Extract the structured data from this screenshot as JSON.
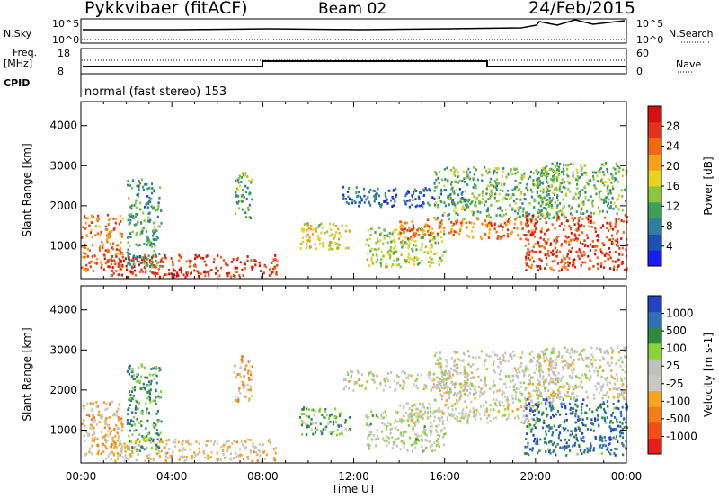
{
  "header": {
    "station": "Pykkvibaer (fitACF)",
    "beam": "Beam 02",
    "date": "24/Feb/2015"
  },
  "strip_panels": {
    "nsky_label": "N.Sky",
    "nsky_ticks": [
      "10^5",
      "10^0"
    ],
    "nsearch_label": "N.Search",
    "nsearch_ticks": [
      "10^5",
      "10^0"
    ],
    "freq_label_top": "Freq.",
    "freq_label_bottom": "[MHz]",
    "freq_ticks": [
      "18",
      "8"
    ],
    "nave_label": "Nave",
    "nave_ticks": [
      "60",
      "0"
    ],
    "cpid_label": "CPID",
    "cpid_value": "normal (fast stereo) 153"
  },
  "colors": {
    "power": [
      "#1a1aff",
      "#1e4fb5",
      "#2e7fa0",
      "#3e9e5a",
      "#8cc63e",
      "#e8d21e",
      "#f5a11a",
      "#ef6a12",
      "#e63217",
      "#d6110f"
    ],
    "velocity": [
      "#ec1c1c",
      "#f24e1a",
      "#f57d17",
      "#f7a61b",
      "#c8c8c4",
      "#c0c0bc",
      "#8ad43b",
      "#2d8a3e",
      "#2f6fb8",
      "#2244c4"
    ]
  },
  "chart_data": [
    {
      "type": "heatmap",
      "name": "power-panel",
      "xlabel": "",
      "ylabel": "Slant Range [km]",
      "xlim": [
        "00:00",
        "24:00"
      ],
      "ylim": [
        180,
        4600
      ],
      "yticks": [
        "1000",
        "2000",
        "3000",
        "4000"
      ],
      "colorbar": {
        "label": "Power [dB]",
        "ticks": [
          "4",
          "8",
          "12",
          "16",
          "20",
          "24",
          "28"
        ],
        "range": [
          0,
          30
        ]
      },
      "regions": [
        {
          "t0": 0.0,
          "t1": 1.8,
          "r0": 400,
          "r1": 1800,
          "value": 22
        },
        {
          "t0": 1.0,
          "t1": 8.6,
          "r0": 250,
          "r1": 800,
          "value": 26
        },
        {
          "t0": 2.0,
          "t1": 3.5,
          "r0": 500,
          "r1": 2700,
          "value": 10
        },
        {
          "t0": 6.7,
          "t1": 7.5,
          "r0": 1700,
          "r1": 2900,
          "value": 12
        },
        {
          "t0": 9.6,
          "t1": 11.8,
          "r0": 900,
          "r1": 1600,
          "value": 16
        },
        {
          "t0": 11.5,
          "t1": 17.0,
          "r0": 2000,
          "r1": 2500,
          "value": 6
        },
        {
          "t0": 12.5,
          "t1": 16.0,
          "r0": 500,
          "r1": 1500,
          "value": 14
        },
        {
          "t0": 14.0,
          "t1": 20.0,
          "r0": 1200,
          "r1": 1700,
          "value": 22
        },
        {
          "t0": 15.5,
          "t1": 21.0,
          "r0": 1700,
          "r1": 3000,
          "value": 12
        },
        {
          "t0": 19.5,
          "t1": 24.0,
          "r0": 400,
          "r1": 1800,
          "value": 25
        },
        {
          "t0": 20.0,
          "t1": 24.0,
          "r0": 1800,
          "r1": 3100,
          "value": 12
        }
      ]
    },
    {
      "type": "heatmap",
      "name": "velocity-panel",
      "xlabel": "Time UT",
      "ylabel": "Slant Range [km]",
      "xlim": [
        "00:00",
        "24:00"
      ],
      "ylim": [
        180,
        4600
      ],
      "xticks": [
        "00:00",
        "04:00",
        "08:00",
        "12:00",
        "16:00",
        "20:00",
        "00:00"
      ],
      "yticks": [
        "1000",
        "2000",
        "3000",
        "4000"
      ],
      "colorbar": {
        "label": "Velocity [m s-1]",
        "ticks": [
          "1000",
          "500",
          "100",
          "25",
          "-25",
          "-100",
          "-500",
          "-1000"
        ],
        "range": [
          -1200,
          1200
        ]
      },
      "regions": [
        {
          "t0": 0.0,
          "t1": 1.8,
          "r0": 400,
          "r1": 1800,
          "value": -300
        },
        {
          "t0": 1.0,
          "t1": 8.6,
          "r0": 250,
          "r1": 800,
          "value": -150
        },
        {
          "t0": 2.0,
          "t1": 3.5,
          "r0": 500,
          "r1": 2700,
          "value": 600
        },
        {
          "t0": 6.7,
          "t1": 7.5,
          "r0": 1700,
          "r1": 2900,
          "value": -400
        },
        {
          "t0": 9.6,
          "t1": 11.8,
          "r0": 900,
          "r1": 1600,
          "value": 500
        },
        {
          "t0": 11.5,
          "t1": 17.0,
          "r0": 2000,
          "r1": 2500,
          "value": 0
        },
        {
          "t0": 12.5,
          "t1": 16.0,
          "r0": 500,
          "r1": 1500,
          "value": 200
        },
        {
          "t0": 14.0,
          "t1": 20.0,
          "r0": 1200,
          "r1": 1700,
          "value": -20
        },
        {
          "t0": 15.5,
          "t1": 21.0,
          "r0": 1700,
          "r1": 3000,
          "value": 0
        },
        {
          "t0": 19.5,
          "t1": 24.0,
          "r0": 400,
          "r1": 1800,
          "value": 800
        },
        {
          "t0": 20.0,
          "t1": 24.0,
          "r0": 1800,
          "r1": 3100,
          "value": 10
        }
      ]
    }
  ]
}
